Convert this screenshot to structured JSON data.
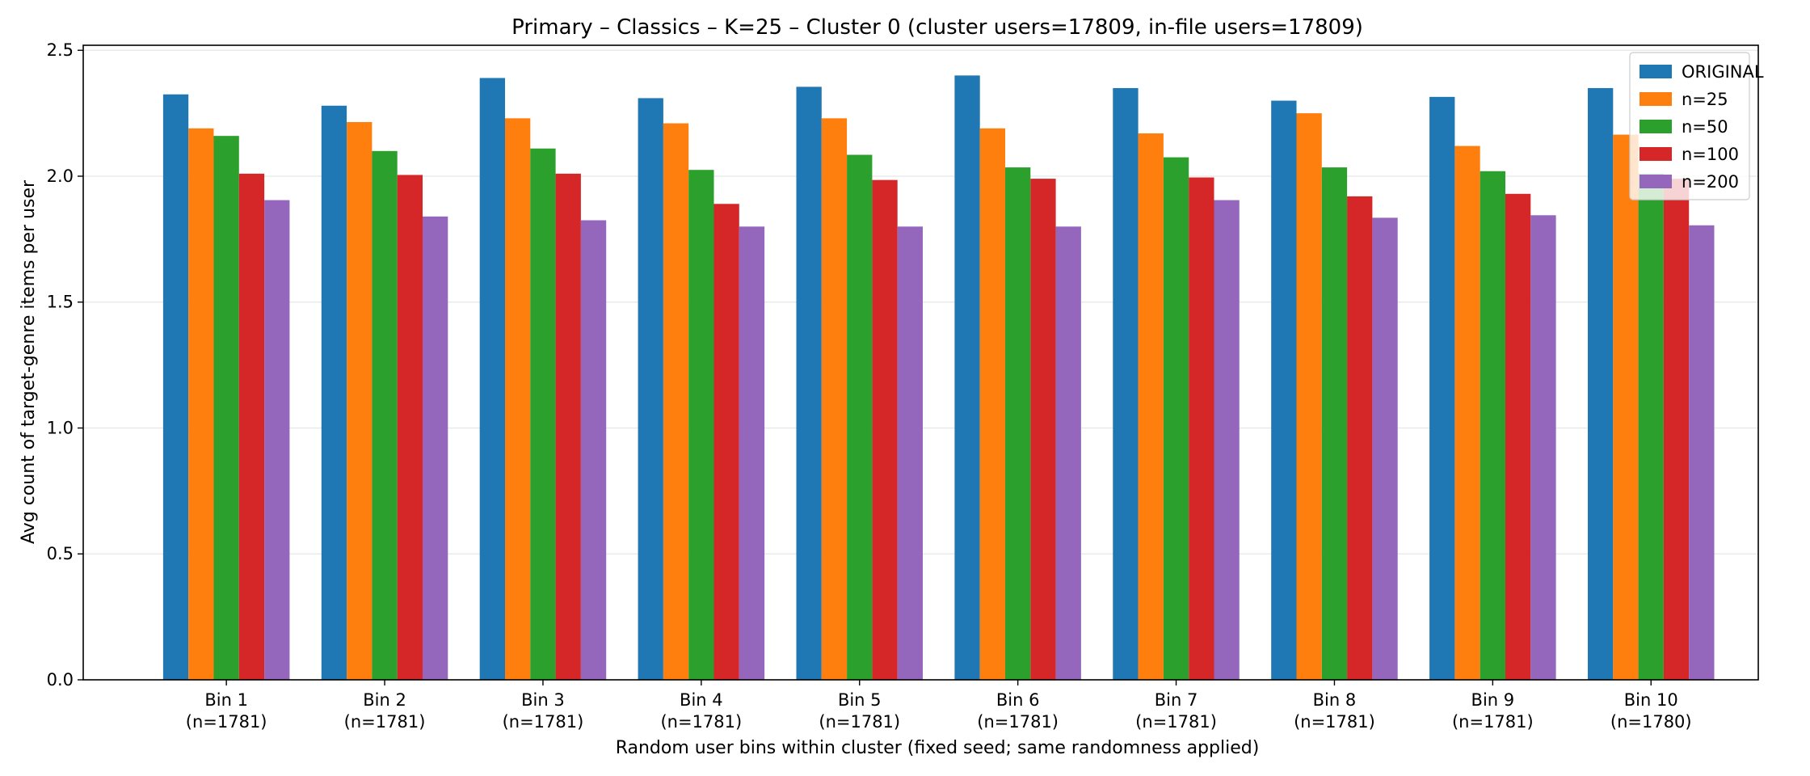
{
  "chart_data": {
    "type": "bar",
    "title": "Primary – Classics – K=25 – Cluster 0 (cluster users=17809, in-file users=17809)",
    "xlabel": "Random user bins within cluster (fixed seed; same randomness applied)",
    "ylabel": "Avg count of target-genre items per user",
    "ylim": [
      0,
      2.52
    ],
    "yticks": [
      "0.0",
      "0.5",
      "1.0",
      "1.5",
      "2.0",
      "2.5"
    ],
    "grid": "horizontal",
    "legend_position": "top-right",
    "categories": [
      {
        "name": "Bin 1",
        "count": "(n=1781)"
      },
      {
        "name": "Bin 2",
        "count": "(n=1781)"
      },
      {
        "name": "Bin 3",
        "count": "(n=1781)"
      },
      {
        "name": "Bin 4",
        "count": "(n=1781)"
      },
      {
        "name": "Bin 5",
        "count": "(n=1781)"
      },
      {
        "name": "Bin 6",
        "count": "(n=1781)"
      },
      {
        "name": "Bin 7",
        "count": "(n=1781)"
      },
      {
        "name": "Bin 8",
        "count": "(n=1781)"
      },
      {
        "name": "Bin 9",
        "count": "(n=1781)"
      },
      {
        "name": "Bin 10",
        "count": "(n=1780)"
      }
    ],
    "series": [
      {
        "name": "ORIGINAL",
        "color": "#1f77b4",
        "values": [
          2.325,
          2.28,
          2.39,
          2.31,
          2.355,
          2.4,
          2.35,
          2.3,
          2.315,
          2.35
        ]
      },
      {
        "name": "n=25",
        "color": "#ff7f0e",
        "values": [
          2.19,
          2.215,
          2.23,
          2.21,
          2.23,
          2.19,
          2.17,
          2.25,
          2.12,
          2.165
        ]
      },
      {
        "name": "n=50",
        "color": "#2ca02c",
        "values": [
          2.16,
          2.1,
          2.11,
          2.025,
          2.085,
          2.035,
          2.075,
          2.035,
          2.02,
          2.01
        ]
      },
      {
        "name": "n=100",
        "color": "#d62728",
        "values": [
          2.01,
          2.005,
          2.01,
          1.89,
          1.985,
          1.99,
          1.995,
          1.92,
          1.93,
          1.99
        ]
      },
      {
        "name": "n=200",
        "color": "#9467bd",
        "values": [
          1.905,
          1.84,
          1.825,
          1.8,
          1.8,
          1.8,
          1.905,
          1.835,
          1.845,
          1.805
        ]
      }
    ]
  }
}
